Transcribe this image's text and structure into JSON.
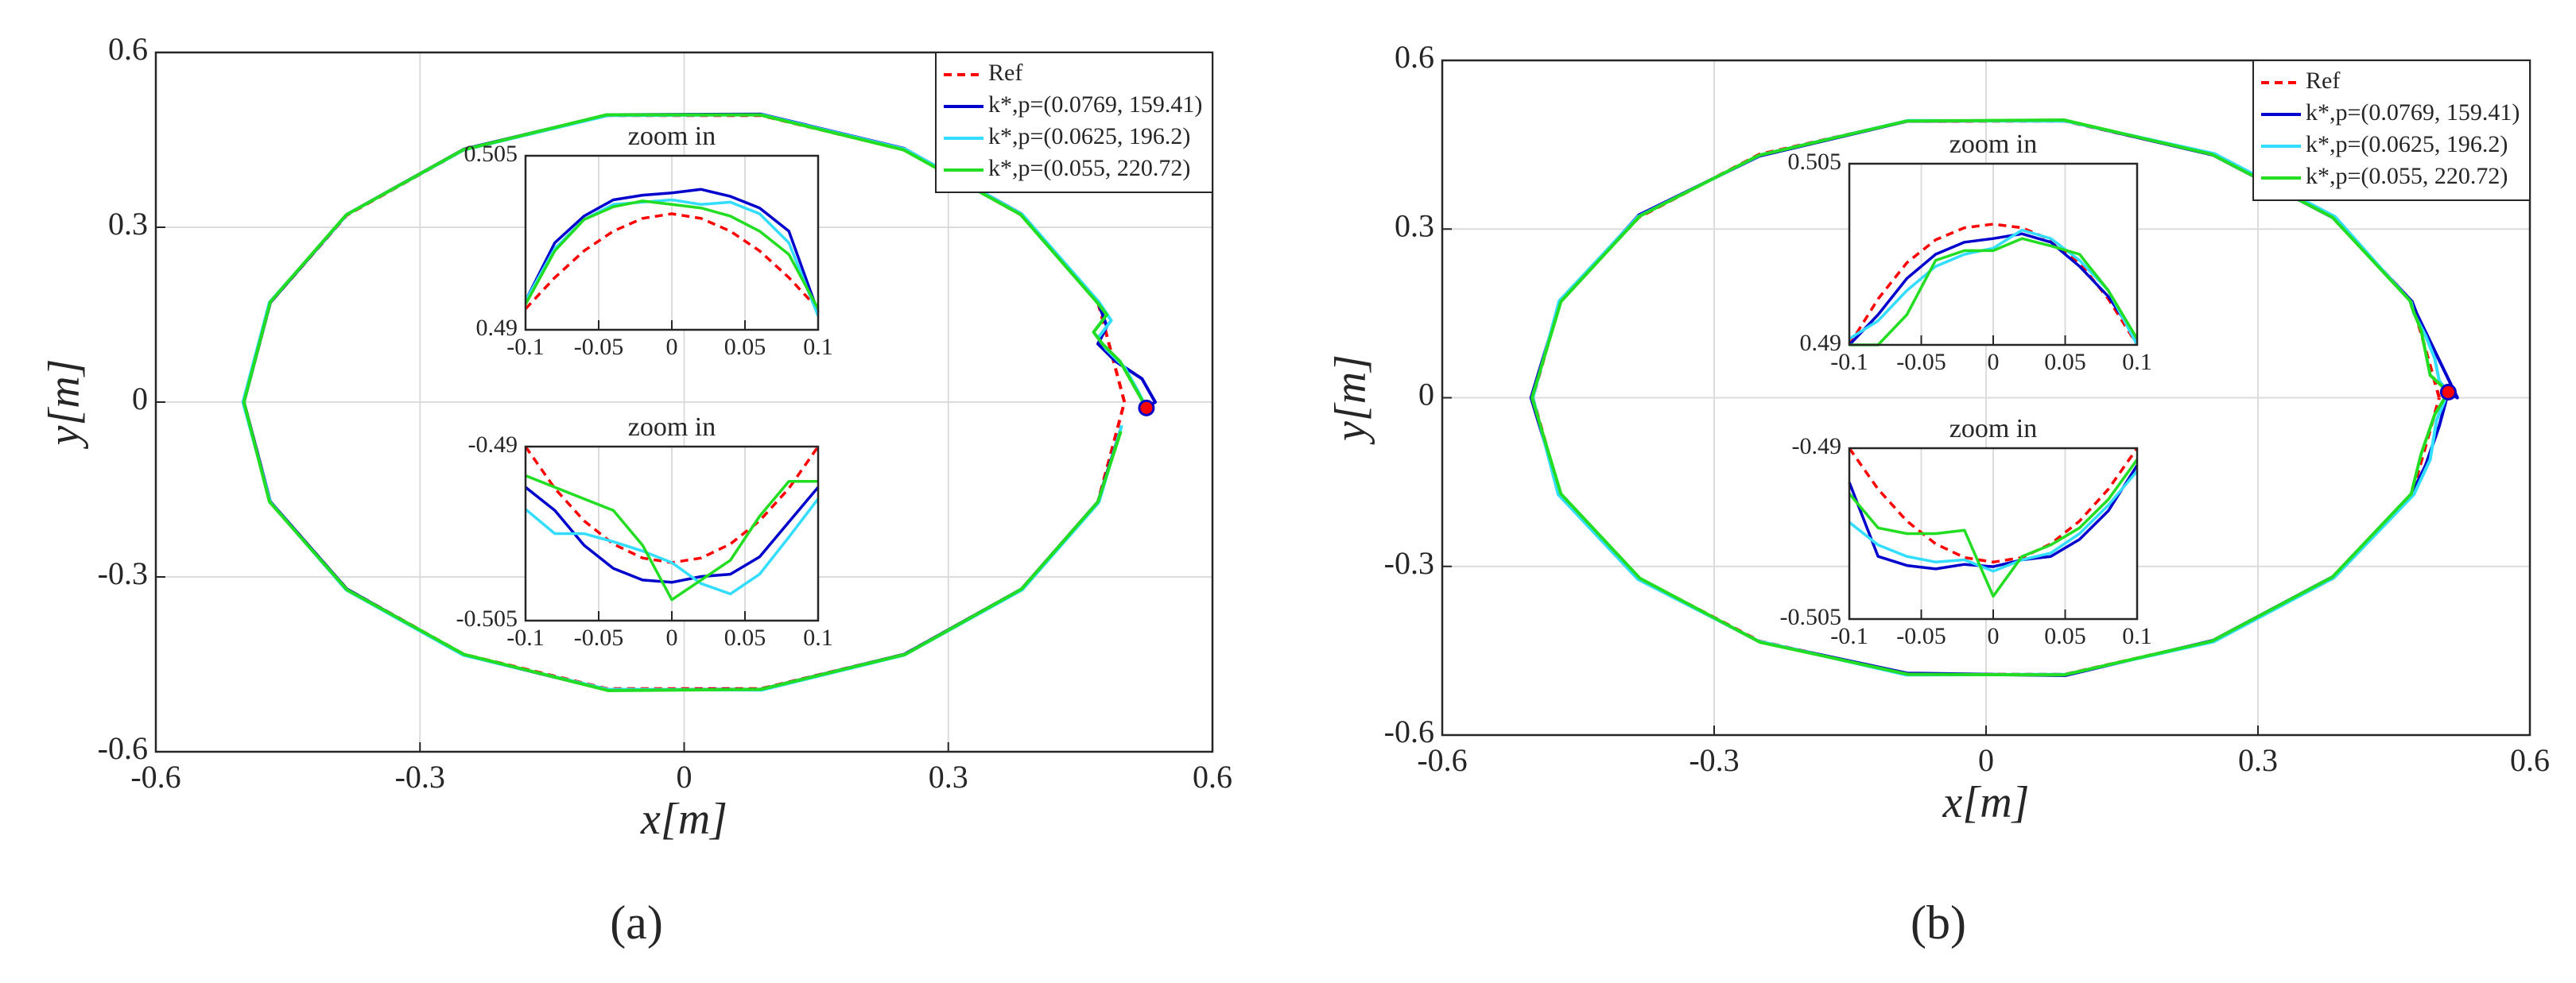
{
  "chart_data": [
    {
      "type": "line",
      "caption": "(a)",
      "xlabel": "x[m]",
      "ylabel": "y[m]",
      "xlim": [
        -0.6,
        0.6
      ],
      "ylim": [
        -0.6,
        0.6
      ],
      "xticks": [
        -0.6,
        -0.3,
        0,
        0.3,
        0.6
      ],
      "yticks": [
        -0.6,
        -0.3,
        0,
        0.3,
        0.6
      ],
      "grid": true,
      "legend": "upper right",
      "end_point": {
        "x": 0.525,
        "y": -0.01
      },
      "series": [
        {
          "name": "Ref",
          "color": "#ff0000",
          "style": "dashed",
          "x": [
            0.5,
            0.47,
            0.383,
            0.25,
            0.087,
            -0.087,
            -0.25,
            -0.383,
            -0.47,
            -0.5,
            -0.47,
            -0.383,
            -0.25,
            -0.087,
            0.087,
            0.25,
            0.383,
            0.47,
            0.5
          ],
          "values": [
            0,
            0.171,
            0.321,
            0.433,
            0.492,
            0.492,
            0.433,
            0.321,
            0.171,
            0,
            -0.171,
            -0.321,
            -0.433,
            -0.492,
            -0.492,
            -0.433,
            -0.321,
            -0.171,
            0
          ]
        },
        {
          "name": "k*,p=(0.0769, 159.41)",
          "color": "#0000cc",
          "style": "solid",
          "x": [
            0.525,
            0.535,
            0.52,
            0.49,
            0.47,
            0.48,
            0.47,
            0.383,
            0.25,
            0.087,
            -0.087,
            -0.25,
            -0.383,
            -0.47,
            -0.5,
            -0.47,
            -0.383,
            -0.25,
            -0.087,
            0.087,
            0.25,
            0.383,
            0.47,
            0.495
          ],
          "values": [
            -0.01,
            0.0,
            0.04,
            0.07,
            0.1,
            0.13,
            0.172,
            0.323,
            0.435,
            0.494,
            0.493,
            0.434,
            0.322,
            0.171,
            0,
            -0.171,
            -0.321,
            -0.434,
            -0.494,
            -0.493,
            -0.433,
            -0.321,
            -0.171,
            -0.05
          ]
        },
        {
          "name": "k*,p=(0.0625, 196.2)",
          "color": "#33ddff",
          "style": "solid",
          "x": [
            0.525,
            0.515,
            0.5,
            0.48,
            0.47,
            0.485,
            0.471,
            0.384,
            0.251,
            0.088,
            -0.086,
            -0.25,
            -0.383,
            -0.471,
            -0.501,
            -0.47,
            -0.384,
            -0.251,
            -0.087,
            0.088,
            0.25,
            0.384,
            0.471,
            0.497
          ],
          "values": [
            -0.01,
            0.02,
            0.06,
            0.09,
            0.11,
            0.14,
            0.172,
            0.322,
            0.434,
            0.493,
            0.492,
            0.433,
            0.322,
            0.171,
            0,
            -0.172,
            -0.322,
            -0.434,
            -0.493,
            -0.494,
            -0.434,
            -0.322,
            -0.172,
            -0.04
          ]
        },
        {
          "name": "k*,p=(0.055, 220.72)",
          "color": "#22dd22",
          "style": "solid",
          "x": [
            0.525,
            0.51,
            0.495,
            0.475,
            0.465,
            0.48,
            0.469,
            0.382,
            0.249,
            0.086,
            -0.088,
            -0.251,
            -0.384,
            -0.47,
            -0.5,
            -0.471,
            -0.383,
            -0.25,
            -0.086,
            0.087,
            0.251,
            0.383,
            0.47,
            0.496
          ],
          "values": [
            -0.01,
            0.03,
            0.07,
            0.1,
            0.12,
            0.15,
            0.171,
            0.322,
            0.433,
            0.493,
            0.493,
            0.433,
            0.321,
            0.172,
            0,
            -0.171,
            -0.322,
            -0.433,
            -0.495,
            -0.493,
            -0.433,
            -0.321,
            -0.171,
            -0.05
          ]
        }
      ]
    },
    {
      "type": "line",
      "title": "zoom in",
      "xlim": [
        -0.1,
        0.1
      ],
      "ylim": [
        0.49,
        0.505
      ],
      "xticks": [
        -0.1,
        -0.05,
        0,
        0.05,
        0.1
      ],
      "yticks": [
        0.49,
        0.505
      ],
      "grid": true,
      "x": [
        -0.1,
        -0.08,
        -0.06,
        -0.04,
        -0.02,
        0,
        0.02,
        0.04,
        0.06,
        0.08,
        0.1
      ],
      "series": [
        {
          "name": "Ref",
          "color": "#ff0000",
          "style": "dashed",
          "values": [
            0.4918,
            0.4945,
            0.4968,
            0.4985,
            0.4996,
            0.5,
            0.4996,
            0.4985,
            0.4968,
            0.4945,
            0.4918
          ]
        },
        {
          "name": "k*,p=(0.0769, 159.41)",
          "color": "#0000cc",
          "style": "solid",
          "values": [
            0.4925,
            0.4975,
            0.4998,
            0.5012,
            0.5016,
            0.5018,
            0.5021,
            0.5015,
            0.5005,
            0.4985,
            0.4915
          ]
        },
        {
          "name": "k*,p=(0.0625, 196.2)",
          "color": "#33ddff",
          "style": "solid",
          "values": [
            0.4925,
            0.497,
            0.4995,
            0.5008,
            0.501,
            0.5012,
            0.5008,
            0.501,
            0.5,
            0.4975,
            0.4912
          ]
        },
        {
          "name": "k*,p=(0.055, 220.72)",
          "color": "#22dd22",
          "style": "solid",
          "values": [
            0.4922,
            0.4968,
            0.4995,
            0.5006,
            0.5011,
            0.5008,
            0.5005,
            0.4998,
            0.4985,
            0.4965,
            0.4918
          ]
        }
      ]
    },
    {
      "type": "line",
      "title": "zoom in",
      "xlim": [
        -0.1,
        0.1
      ],
      "ylim": [
        -0.505,
        -0.49
      ],
      "xticks": [
        -0.1,
        -0.05,
        0,
        0.05,
        0.1
      ],
      "yticks": [
        -0.505,
        -0.49
      ],
      "grid": true,
      "x": [
        -0.1,
        -0.08,
        -0.06,
        -0.04,
        -0.02,
        0,
        0.02,
        0.04,
        0.06,
        0.08,
        0.1
      ],
      "series": [
        {
          "name": "Ref",
          "color": "#ff0000",
          "style": "dashed",
          "values": [
            -0.49,
            -0.4936,
            -0.4964,
            -0.4984,
            -0.4996,
            -0.5,
            -0.4996,
            -0.4984,
            -0.4964,
            -0.4936,
            -0.49
          ]
        },
        {
          "name": "k*,p=(0.0769, 159.41)",
          "color": "#0000cc",
          "style": "solid",
          "values": [
            -0.4935,
            -0.4955,
            -0.4985,
            -0.5005,
            -0.5015,
            -0.5017,
            -0.5012,
            -0.501,
            -0.4995,
            -0.4965,
            -0.4935
          ]
        },
        {
          "name": "k*,p=(0.0625, 196.2)",
          "color": "#33ddff",
          "style": "solid",
          "values": [
            -0.4954,
            -0.4975,
            -0.4975,
            -0.4982,
            -0.499,
            -0.5,
            -0.5018,
            -0.5027,
            -0.501,
            -0.4978,
            -0.4945
          ]
        },
        {
          "name": "k*,p=(0.055, 220.72)",
          "color": "#22dd22",
          "style": "solid",
          "values": [
            -0.4925,
            -0.4935,
            -0.4945,
            -0.4955,
            -0.4985,
            -0.5032,
            -0.5015,
            -0.4998,
            -0.496,
            -0.493,
            -0.493
          ]
        }
      ]
    },
    {
      "type": "line",
      "caption": "(b)",
      "xlabel": "x[m]",
      "ylabel": "y[m]",
      "xlim": [
        -0.6,
        0.6
      ],
      "ylim": [
        -0.6,
        0.6
      ],
      "xticks": [
        -0.6,
        -0.3,
        0,
        0.3,
        0.6
      ],
      "yticks": [
        -0.6,
        -0.3,
        0,
        0.3,
        0.6
      ],
      "grid": true,
      "legend": "upper right",
      "end_point": {
        "x": 0.51,
        "y": 0.01
      },
      "series": [
        {
          "name": "Ref",
          "color": "#ff0000",
          "style": "dashed",
          "x": [
            0.5,
            0.47,
            0.383,
            0.25,
            0.087,
            -0.087,
            -0.25,
            -0.383,
            -0.47,
            -0.5,
            -0.47,
            -0.383,
            -0.25,
            -0.087,
            0.087,
            0.25,
            0.383,
            0.47,
            0.5
          ],
          "values": [
            0,
            0.171,
            0.321,
            0.433,
            0.492,
            0.492,
            0.433,
            0.321,
            0.171,
            0,
            -0.171,
            -0.321,
            -0.433,
            -0.492,
            -0.492,
            -0.433,
            -0.321,
            -0.171,
            0
          ]
        },
        {
          "name": "k*,p=(0.0769, 159.41)",
          "color": "#0000cc",
          "style": "solid",
          "x": [
            0.51,
            0.52,
            0.505,
            0.49,
            0.475,
            0.47,
            0.383,
            0.25,
            0.087,
            -0.087,
            -0.25,
            -0.383,
            -0.47,
            -0.502,
            -0.47,
            -0.383,
            -0.25,
            -0.087,
            0.087,
            0.25,
            0.383,
            0.47,
            0.485,
            0.5,
            0.51
          ],
          "values": [
            0.01,
            0.0,
            0.05,
            0.1,
            0.15,
            0.171,
            0.32,
            0.432,
            0.493,
            0.492,
            0.43,
            0.325,
            0.17,
            0,
            -0.17,
            -0.322,
            -0.434,
            -0.49,
            -0.494,
            -0.432,
            -0.318,
            -0.17,
            -0.12,
            -0.05,
            0.01
          ]
        },
        {
          "name": "k*,p=(0.0625, 196.2)",
          "color": "#33ddff",
          "style": "solid",
          "x": [
            0.51,
            0.5,
            0.495,
            0.485,
            0.472,
            0.469,
            0.385,
            0.252,
            0.088,
            -0.086,
            -0.249,
            -0.384,
            -0.471,
            -0.5,
            -0.472,
            -0.384,
            -0.251,
            -0.088,
            0.088,
            0.251,
            0.384,
            0.472,
            0.49,
            0.497,
            0.51
          ],
          "values": [
            0.01,
            0.03,
            0.07,
            0.11,
            0.15,
            0.17,
            0.322,
            0.434,
            0.492,
            0.493,
            0.432,
            0.322,
            0.172,
            0,
            -0.172,
            -0.323,
            -0.433,
            -0.493,
            -0.492,
            -0.434,
            -0.32,
            -0.172,
            -0.11,
            -0.04,
            0.01
          ]
        },
        {
          "name": "k*,p=(0.055, 220.72)",
          "color": "#22dd22",
          "style": "solid",
          "x": [
            0.51,
            0.49,
            0.485,
            0.48,
            0.47,
            0.468,
            0.382,
            0.249,
            0.086,
            -0.088,
            -0.251,
            -0.382,
            -0.469,
            -0.501,
            -0.469,
            -0.382,
            -0.249,
            -0.086,
            0.086,
            0.249,
            0.382,
            0.469,
            0.48,
            0.495,
            0.51
          ],
          "values": [
            0.01,
            0.04,
            0.08,
            0.12,
            0.16,
            0.172,
            0.321,
            0.433,
            0.494,
            0.492,
            0.431,
            0.323,
            0.171,
            0,
            -0.171,
            -0.321,
            -0.435,
            -0.492,
            -0.493,
            -0.433,
            -0.319,
            -0.171,
            -0.1,
            -0.03,
            0.01
          ]
        }
      ]
    },
    {
      "type": "line",
      "title": "zoom in",
      "xlim": [
        -0.1,
        0.1
      ],
      "ylim": [
        0.49,
        0.505
      ],
      "xticks": [
        -0.1,
        -0.05,
        0,
        0.05,
        0.1
      ],
      "yticks": [
        0.49,
        0.505
      ],
      "grid": true,
      "x": [
        -0.1,
        -0.08,
        -0.06,
        -0.04,
        -0.02,
        0,
        0.02,
        0.04,
        0.06,
        0.08,
        0.1
      ],
      "series": [
        {
          "name": "Ref",
          "color": "#ff0000",
          "style": "dashed",
          "values": [
            0.49,
            0.4938,
            0.4968,
            0.4987,
            0.4997,
            0.5,
            0.4997,
            0.4987,
            0.4968,
            0.4938,
            0.49
          ]
        },
        {
          "name": "k*,p=(0.0769, 159.41)",
          "color": "#0000cc",
          "style": "solid",
          "values": [
            0.49,
            0.4925,
            0.4955,
            0.4975,
            0.4985,
            0.4988,
            0.4992,
            0.4985,
            0.4965,
            0.494,
            0.4905
          ]
        },
        {
          "name": "k*,p=(0.0625, 196.2)",
          "color": "#33ddff",
          "style": "solid",
          "values": [
            0.4905,
            0.492,
            0.4945,
            0.4965,
            0.4975,
            0.498,
            0.4995,
            0.4988,
            0.497,
            0.4945,
            0.49
          ]
        },
        {
          "name": "k*,p=(0.055, 220.72)",
          "color": "#22dd22",
          "style": "solid",
          "values": [
            0.49,
            0.49,
            0.4925,
            0.497,
            0.4978,
            0.4978,
            0.4988,
            0.4982,
            0.4975,
            0.4945,
            0.4905
          ]
        }
      ]
    },
    {
      "type": "line",
      "title": "zoom in",
      "xlim": [
        -0.1,
        0.1
      ],
      "ylim": [
        -0.505,
        -0.49
      ],
      "xticks": [
        -0.1,
        -0.05,
        0,
        0.05,
        0.1
      ],
      "yticks": [
        -0.505,
        -0.49
      ],
      "grid": true,
      "x": [
        -0.1,
        -0.08,
        -0.06,
        -0.04,
        -0.02,
        0,
        0.02,
        0.04,
        0.06,
        0.08,
        0.1
      ],
      "series": [
        {
          "name": "Ref",
          "color": "#ff0000",
          "style": "dashed",
          "values": [
            -0.49,
            -0.4936,
            -0.4964,
            -0.4984,
            -0.4996,
            -0.5,
            -0.4996,
            -0.4984,
            -0.4964,
            -0.4936,
            -0.49
          ]
        },
        {
          "name": "k*,p=(0.0769, 159.41)",
          "color": "#0000cc",
          "style": "solid",
          "values": [
            -0.493,
            -0.4995,
            -0.5003,
            -0.5006,
            -0.5002,
            -0.5004,
            -0.4998,
            -0.4995,
            -0.498,
            -0.4955,
            -0.4915
          ]
        },
        {
          "name": "k*,p=(0.0625, 196.2)",
          "color": "#33ddff",
          "style": "solid",
          "values": [
            -0.4965,
            -0.4985,
            -0.4995,
            -0.5,
            -0.4998,
            -0.5008,
            -0.4998,
            -0.4992,
            -0.4975,
            -0.495,
            -0.492
          ]
        },
        {
          "name": "k*,p=(0.055, 220.72)",
          "color": "#22dd22",
          "style": "solid",
          "values": [
            -0.494,
            -0.497,
            -0.4975,
            -0.4975,
            -0.4972,
            -0.503,
            -0.4995,
            -0.4985,
            -0.497,
            -0.4945,
            -0.491
          ]
        }
      ]
    }
  ]
}
